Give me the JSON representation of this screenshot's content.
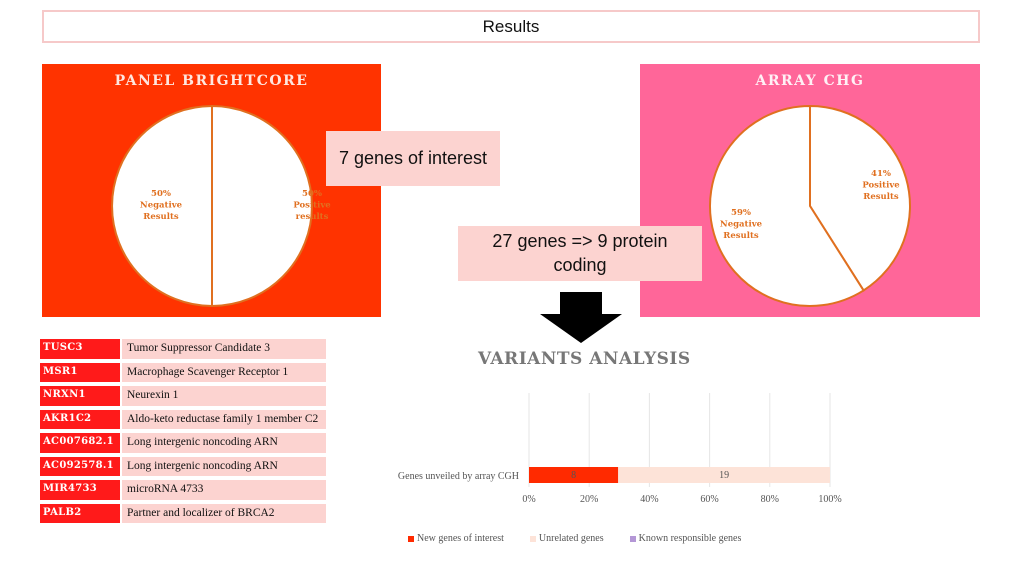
{
  "slide": {
    "title": "Results"
  },
  "panels": {
    "left": {
      "title": "PANEL BRIGHTCORE",
      "color": "#ff3300"
    },
    "right": {
      "title": "ARRAY CHG",
      "color": "#ff6699"
    }
  },
  "callouts": {
    "genes_of_interest": "7 genes of interest",
    "protein_coding": "27 genes => 9 protein coding"
  },
  "gene_table": [
    {
      "symbol": "TUSC3",
      "name": "Tumor Suppressor Candidate 3"
    },
    {
      "symbol": "MSR1",
      "name": "Macrophage Scavenger Receptor 1"
    },
    {
      "symbol": "NRXN1",
      "name": "Neurexin 1"
    },
    {
      "symbol": "AKR1C2",
      "name": "Aldo-keto reductase family 1 member C2"
    },
    {
      "symbol": "AC007682.1",
      "name": "Long intergenic noncoding ARN"
    },
    {
      "symbol": "AC092578.1",
      "name": "Long intergenic noncoding ARN"
    },
    {
      "symbol": "MIR4733",
      "name": "microRNA 4733"
    },
    {
      "symbol": "PALB2",
      "name": "Partner and localizer of BRCA2"
    }
  ],
  "variants_title": "VARIANTS ANALYSIS",
  "chart_data": [
    {
      "type": "pie",
      "panel": "PANEL BRIGHTCORE",
      "slices": [
        {
          "label": [
            "50%",
            "Positive",
            "results"
          ],
          "value": 50
        },
        {
          "label": [
            "50%",
            "Negative",
            "Results"
          ],
          "value": 50
        }
      ],
      "fill": "#ffffff",
      "stroke": "#e07020"
    },
    {
      "type": "pie",
      "panel": "ARRAY CHG",
      "slices": [
        {
          "label": [
            "41%",
            "Positive",
            "Results"
          ],
          "value": 41
        },
        {
          "label": [
            "59%",
            "Negative",
            "Results"
          ],
          "value": 59
        }
      ],
      "fill": "#ffffff",
      "stroke": "#e07020"
    },
    {
      "type": "bar",
      "orientation": "horizontal",
      "stacked": "percent",
      "categories": [
        "Genes unveiled by array CGH"
      ],
      "series": [
        {
          "name": "New genes of interest",
          "values": [
            8
          ],
          "color": "#ff2a00"
        },
        {
          "name": "Unrelated genes",
          "values": [
            19
          ],
          "color": "#fde3d8"
        },
        {
          "name": "Known responsible genes",
          "values": [
            0
          ],
          "color": "#b497d6"
        }
      ],
      "xticks": [
        "0%",
        "20%",
        "40%",
        "60%",
        "80%",
        "100%"
      ],
      "xlim": [
        0,
        100
      ],
      "grid": true,
      "legend": "bottom"
    }
  ]
}
